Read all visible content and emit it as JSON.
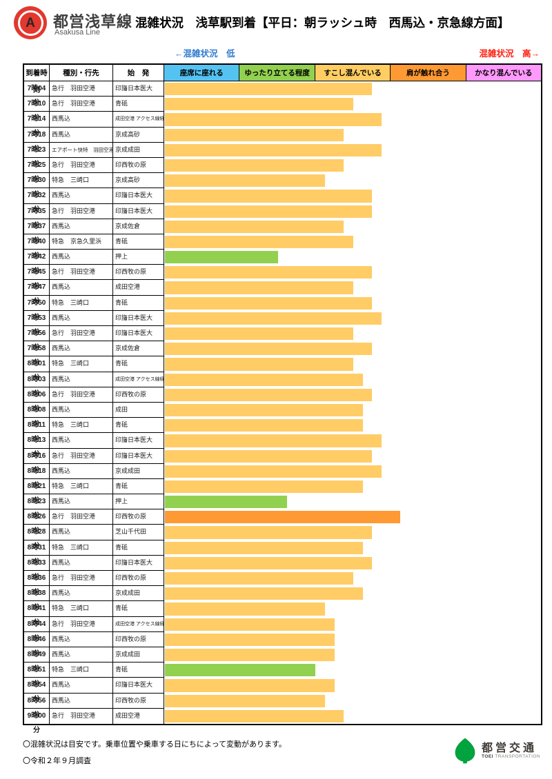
{
  "header": {
    "line_badge_letter": "A",
    "line_name": "都営浅草線",
    "line_name_en": "Asakusa Line",
    "title": "混雑状況　浅草駅到着【平日：朝ラッシュ時　西馬込・京急線方面】",
    "badge_color": "#E2382F"
  },
  "legend": {
    "low_label": "←混雑状況　低",
    "low_color": "#2E7BCE",
    "high_label": "混雑状況　高→",
    "high_color": "#FF1F0F"
  },
  "table": {
    "columns": [
      "到着時刻",
      "種別・行先",
      "始　発"
    ],
    "levels": [
      {
        "label": "座席に座れる",
        "color": "#55C3F2"
      },
      {
        "label": "ゆったり立てる程度",
        "color": "#92D050"
      },
      {
        "label": "すこし混んでいる",
        "color": "#FFCD63"
      },
      {
        "label": "肩が触れ合う",
        "color": "#FF9933"
      },
      {
        "label": "かなり混んでいる",
        "color": "#FF99FB"
      }
    ]
  },
  "chart_data": {
    "type": "bar",
    "orientation": "horizontal",
    "title": "混雑状況　浅草駅到着【平日：朝ラッシュ時　西馬込・京急線方面】",
    "xlabel": "混雑状況（低→高）",
    "x_bands": [
      "座席に座れる",
      "ゆったり立てる程度",
      "すこし混んでいる",
      "肩が触れ合う",
      "かなり混んでいる"
    ],
    "x_range_pct": [
      0,
      100
    ],
    "grid": false,
    "level_colors": {
      "ゆったり立てる程度": "#92D050",
      "すこし混んでいる": "#FFCC66",
      "肩が触れ合う": "#FF9933"
    },
    "rows": [
      {
        "time": "7時04分",
        "type": "急行　羽田空港",
        "origin": "印旛日本医大",
        "level": "すこし混んでいる",
        "bar_pct": 55
      },
      {
        "time": "7時10分",
        "type": "急行　羽田空港",
        "origin": "青砥",
        "level": "すこし混んでいる",
        "bar_pct": 50
      },
      {
        "time": "7時14分",
        "type": "西馬込",
        "origin": "成田空港 アクセス線経由",
        "origin_small": true,
        "level": "すこし混んでいる",
        "bar_pct": 57.5
      },
      {
        "time": "7時18分",
        "type": "西馬込",
        "origin": "京成高砂",
        "level": "すこし混んでいる",
        "bar_pct": 47.5
      },
      {
        "time": "7時23分",
        "type": "エアポート快特　羽田空港",
        "type_small": true,
        "origin": "京成成田",
        "level": "すこし混んでいる",
        "bar_pct": 57.5
      },
      {
        "time": "7時25分",
        "type": "急行　羽田空港",
        "origin": "印西牧の原",
        "level": "すこし混んでいる",
        "bar_pct": 47.5
      },
      {
        "time": "7時30分",
        "type": "特急　三崎口",
        "origin": "京成高砂",
        "level": "すこし混んでいる",
        "bar_pct": 42.5
      },
      {
        "time": "7時32分",
        "type": "西馬込",
        "origin": "印旛日本医大",
        "level": "すこし混んでいる",
        "bar_pct": 55
      },
      {
        "time": "7時35分",
        "type": "急行　羽田空港",
        "origin": "印旛日本医大",
        "level": "すこし混んでいる",
        "bar_pct": 55
      },
      {
        "time": "7時37分",
        "type": "西馬込",
        "origin": "京成佐倉",
        "level": "すこし混んでいる",
        "bar_pct": 47.5
      },
      {
        "time": "7時40分",
        "type": "特急　京急久里浜",
        "origin": "青砥",
        "level": "すこし混んでいる",
        "bar_pct": 50
      },
      {
        "time": "7時42分",
        "type": "西馬込",
        "origin": "押上",
        "level": "ゆったり立てる程度",
        "bar_pct": 30
      },
      {
        "time": "7時45分",
        "type": "急行　羽田空港",
        "origin": "印西牧の原",
        "level": "すこし混んでいる",
        "bar_pct": 55
      },
      {
        "time": "7時47分",
        "type": "西馬込",
        "origin": "成田空港",
        "level": "すこし混んでいる",
        "bar_pct": 50
      },
      {
        "time": "7時50分",
        "type": "特急　三崎口",
        "origin": "青砥",
        "level": "すこし混んでいる",
        "bar_pct": 55
      },
      {
        "time": "7時53分",
        "type": "西馬込",
        "origin": "印旛日本医大",
        "level": "すこし混んでいる",
        "bar_pct": 57.5
      },
      {
        "time": "7時56分",
        "type": "急行　羽田空港",
        "origin": "印旛日本医大",
        "level": "すこし混んでいる",
        "bar_pct": 50
      },
      {
        "time": "7時58分",
        "type": "西馬込",
        "origin": "京成佐倉",
        "level": "すこし混んでいる",
        "bar_pct": 55
      },
      {
        "time": "8時01分",
        "type": "特急　三崎口",
        "origin": "青砥",
        "level": "すこし混んでいる",
        "bar_pct": 50
      },
      {
        "time": "8時03分",
        "type": "西馬込",
        "origin": "成田空港 アクセス線経由",
        "origin_small": true,
        "level": "すこし混んでいる",
        "bar_pct": 52.5
      },
      {
        "time": "8時06分",
        "type": "急行　羽田空港",
        "origin": "印西牧の原",
        "level": "すこし混んでいる",
        "bar_pct": 55
      },
      {
        "time": "8時08分",
        "type": "西馬込",
        "origin": "成田",
        "level": "すこし混んでいる",
        "bar_pct": 52.5
      },
      {
        "time": "8時11分",
        "type": "特急　三崎口",
        "origin": "青砥",
        "level": "すこし混んでいる",
        "bar_pct": 52.5
      },
      {
        "time": "8時13分",
        "type": "西馬込",
        "origin": "印旛日本医大",
        "level": "すこし混んでいる",
        "bar_pct": 57.5
      },
      {
        "time": "8時16分",
        "type": "急行　羽田空港",
        "origin": "印旛日本医大",
        "level": "すこし混んでいる",
        "bar_pct": 55
      },
      {
        "time": "8時18分",
        "type": "西馬込",
        "origin": "京成成田",
        "level": "すこし混んでいる",
        "bar_pct": 57.5
      },
      {
        "time": "8時21分",
        "type": "特急　三崎口",
        "origin": "青砥",
        "level": "すこし混んでいる",
        "bar_pct": 52.5
      },
      {
        "time": "8時23分",
        "type": "西馬込",
        "origin": "押上",
        "level": "ゆったり立てる程度",
        "bar_pct": 32.5
      },
      {
        "time": "8時26分",
        "type": "急行　羽田空港",
        "origin": "印西牧の原",
        "level": "肩が触れ合う",
        "bar_pct": 62.5
      },
      {
        "time": "8時28分",
        "type": "西馬込",
        "origin": "芝山千代田",
        "level": "すこし混んでいる",
        "bar_pct": 55
      },
      {
        "time": "8時31分",
        "type": "特急　三崎口",
        "origin": "青砥",
        "level": "すこし混んでいる",
        "bar_pct": 52.5
      },
      {
        "time": "8時33分",
        "type": "西馬込",
        "origin": "印旛日本医大",
        "level": "すこし混んでいる",
        "bar_pct": 55
      },
      {
        "time": "8時36分",
        "type": "急行　羽田空港",
        "origin": "印西牧の原",
        "level": "すこし混んでいる",
        "bar_pct": 50
      },
      {
        "time": "8時38分",
        "type": "西馬込",
        "origin": "京成成田",
        "level": "すこし混んでいる",
        "bar_pct": 52.5
      },
      {
        "time": "8時41分",
        "type": "特急　三崎口",
        "origin": "青砥",
        "level": "すこし混んでいる",
        "bar_pct": 42.5
      },
      {
        "time": "8時44分",
        "type": "急行　羽田空港",
        "origin": "成田空港 アクセス線経由",
        "origin_small": true,
        "level": "すこし混んでいる",
        "bar_pct": 45
      },
      {
        "time": "8時46分",
        "type": "西馬込",
        "origin": "印西牧の原",
        "level": "すこし混んでいる",
        "bar_pct": 45
      },
      {
        "time": "8時49分",
        "type": "西馬込",
        "origin": "京成成田",
        "level": "すこし混んでいる",
        "bar_pct": 45
      },
      {
        "time": "8時51分",
        "type": "特急　三崎口",
        "origin": "青砥",
        "level": "ゆったり立てる程度",
        "bar_pct": 40
      },
      {
        "time": "8時54分",
        "type": "西馬込",
        "origin": "印旛日本医大",
        "level": "すこし混んでいる",
        "bar_pct": 45
      },
      {
        "time": "8時56分",
        "type": "西馬込",
        "origin": "印西牧の原",
        "level": "すこし混んでいる",
        "bar_pct": 42.5
      },
      {
        "time": "9時00分",
        "type": "急行　羽田空港",
        "origin": "成田空港",
        "level": "すこし混んでいる",
        "bar_pct": 47.5
      }
    ]
  },
  "footer": {
    "note1": "〇混雑状況は目安です。乗車位置や乗車する日にちによって変動があります。",
    "note2": "〇令和２年９月調査",
    "brand": "都営交通",
    "brand_sub_bold": "TOEI",
    "brand_sub": "TRANSPORTATION",
    "brand_color": "#00A33E"
  }
}
